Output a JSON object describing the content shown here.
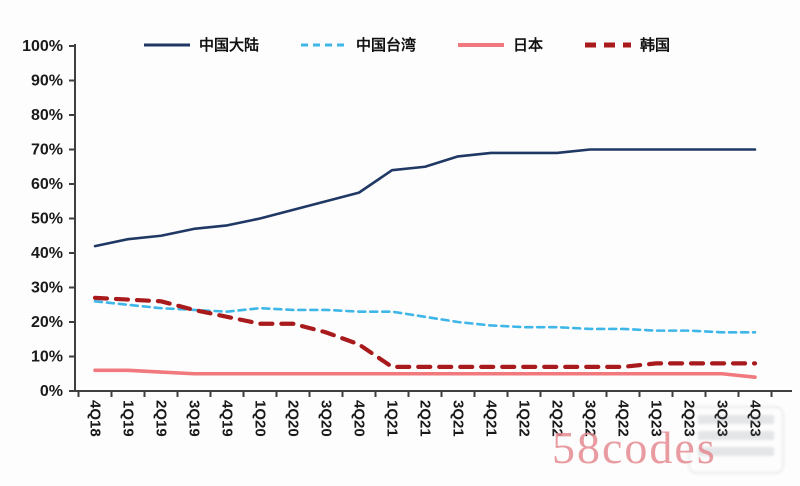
{
  "watermark": {
    "text": "58codes"
  },
  "chart_data": {
    "type": "line",
    "title": "",
    "xlabel": "",
    "ylabel": "",
    "ylim": [
      0,
      100
    ],
    "grid": false,
    "legend_position": "top",
    "y_ticks": [
      "0%",
      "10%",
      "20%",
      "30%",
      "40%",
      "50%",
      "60%",
      "70%",
      "80%",
      "90%",
      "100%"
    ],
    "categories": [
      "4Q18",
      "1Q19",
      "2Q19",
      "3Q19",
      "4Q19",
      "1Q20",
      "2Q20",
      "3Q20",
      "4Q20",
      "1Q21",
      "2Q21",
      "3Q21",
      "4Q21",
      "1Q22",
      "2Q22",
      "3Q22",
      "4Q22",
      "1Q23",
      "2Q23",
      "3Q23",
      "4Q23"
    ],
    "series": [
      {
        "name": "中国大陆",
        "color": "#1F3864",
        "line_style": "solid",
        "values": [
          42,
          44,
          45,
          47,
          48,
          50,
          52.5,
          55,
          57.5,
          64,
          65,
          68,
          69,
          69,
          69,
          70,
          70,
          70,
          70,
          70,
          70
        ]
      },
      {
        "name": "中国台湾",
        "color": "#3EB6E8",
        "line_style": "dashed",
        "values": [
          26,
          25,
          24,
          23.5,
          23,
          24,
          23.5,
          23.5,
          23,
          23,
          21.5,
          20,
          19,
          18.5,
          18.5,
          18,
          18,
          17.5,
          17.5,
          17,
          17
        ]
      },
      {
        "name": "日本",
        "color": "#F1797E",
        "line_style": "solid",
        "values": [
          6,
          6,
          5.5,
          5,
          5,
          5,
          5,
          5,
          5,
          5,
          5,
          5,
          5,
          5,
          5,
          5,
          5,
          5,
          5,
          5,
          4
        ]
      },
      {
        "name": "韩国",
        "color": "#A81A1C",
        "line_style": "dashed",
        "values": [
          27,
          26.5,
          26,
          23.5,
          21.5,
          19.5,
          19.5,
          17,
          13.5,
          7,
          7,
          7,
          7,
          7,
          7,
          7,
          7,
          8,
          8,
          8,
          8
        ]
      }
    ]
  }
}
